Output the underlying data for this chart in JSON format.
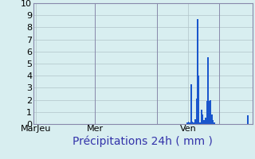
{
  "title": "",
  "xlabel": "Précipitations 24h ( mm )",
  "ylabel": "",
  "ylim": [
    0,
    10
  ],
  "yticks": [
    0,
    1,
    2,
    3,
    4,
    5,
    6,
    7,
    8,
    9,
    10
  ],
  "background_color": "#d8eef0",
  "bar_color": "#1a56cc",
  "grid_color": "#b0c4c8",
  "xtick_labels": [
    "MarJeu",
    "Mer",
    "Ven"
  ],
  "xtick_positions": [
    0.04,
    0.4,
    0.88
  ],
  "num_bars": 168,
  "bar_values": [
    0,
    0,
    0,
    0,
    0,
    0,
    0,
    0,
    0,
    0,
    0,
    0,
    0,
    0,
    0,
    0,
    0,
    0,
    0,
    0,
    0,
    0,
    0,
    0,
    0,
    0,
    0,
    0,
    0,
    0,
    0,
    0,
    0,
    0,
    0,
    0,
    0,
    0,
    0,
    0,
    0,
    0,
    0,
    0,
    0,
    0,
    0,
    0,
    0,
    0,
    0,
    0,
    0,
    0,
    0,
    0,
    0,
    0,
    0,
    0,
    0,
    0,
    0,
    0,
    0,
    0,
    0,
    0,
    0,
    0,
    0,
    0,
    0,
    0,
    0,
    0,
    0,
    0,
    0,
    0,
    0,
    0,
    0,
    0,
    0,
    0,
    0,
    0,
    0,
    0,
    0,
    0,
    0,
    0,
    0,
    0,
    0,
    0,
    0,
    0,
    0,
    0,
    0,
    0,
    0,
    0,
    0,
    0,
    0,
    0,
    0,
    0,
    0,
    0,
    0,
    0,
    0,
    0,
    0,
    0.1,
    0.2,
    0.15,
    3.3,
    0.2,
    0.15,
    0.4,
    2.1,
    8.7,
    4.0,
    0.15,
    1.2,
    0.8,
    0.3,
    0.5,
    1.9,
    5.5,
    1.9,
    2.0,
    0.8,
    0.3,
    0.1,
    0,
    0,
    0,
    0,
    0,
    0,
    0,
    0,
    0,
    0,
    0,
    0,
    0,
    0,
    0,
    0,
    0,
    0,
    0,
    0,
    0,
    0,
    0,
    0,
    0,
    0.7,
    0,
    0,
    0
  ],
  "xlabel_fontsize": 10,
  "tick_fontsize": 8,
  "grid_minor_color": "#c0d4d6",
  "spine_color": "#8888aa",
  "day_line_color": "#8888aa"
}
